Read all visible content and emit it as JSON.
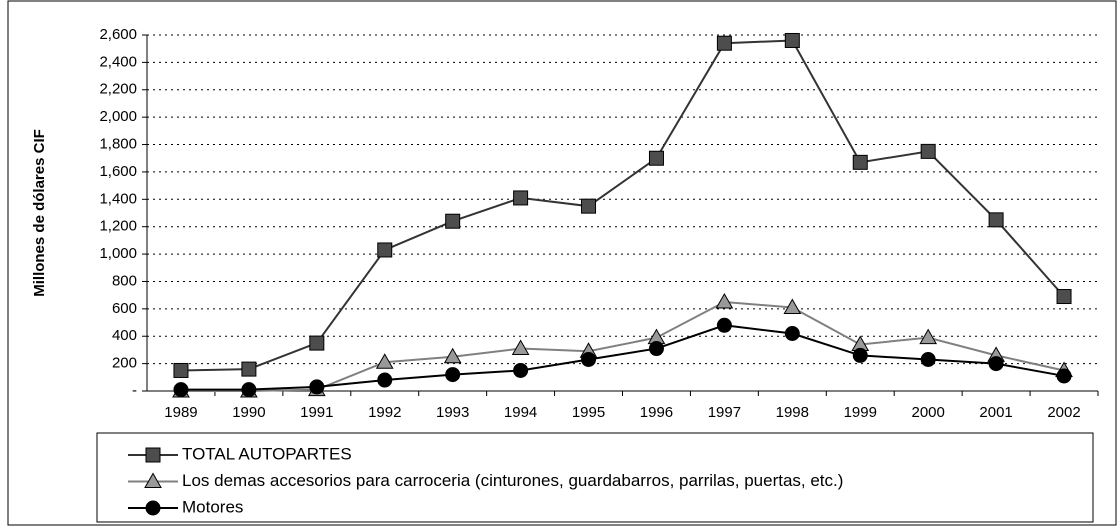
{
  "chart_data": {
    "type": "line",
    "y_label": "Millones de dólares CIF",
    "categories": [
      "1989",
      "1990",
      "1991",
      "1992",
      "1993",
      "1994",
      "1995",
      "1996",
      "1997",
      "1998",
      "1999",
      "2000",
      "2001",
      "2002"
    ],
    "series": [
      {
        "name": "TOTAL AUTOPARTES",
        "color": "#333333",
        "marker": "square",
        "marker_color": "#4d4d4d",
        "values": [
          150,
          160,
          350,
          1030,
          1240,
          1410,
          1350,
          1700,
          2540,
          2560,
          1670,
          1750,
          1250,
          690
        ]
      },
      {
        "name": "Los demas accesorios para carroceria (cinturones, guardabarros, parrilas, puertas, etc.)",
        "color": "#808080",
        "marker": "triangle",
        "marker_color": "#999999",
        "values": [
          0,
          0,
          10,
          210,
          250,
          310,
          290,
          390,
          650,
          610,
          340,
          390,
          260,
          150
        ]
      },
      {
        "name": "Motores",
        "color": "#000000",
        "marker": "circle",
        "marker_color": "#000000",
        "values": [
          10,
          10,
          30,
          80,
          120,
          150,
          230,
          310,
          480,
          420,
          260,
          230,
          200,
          110
        ]
      }
    ],
    "ylim": [
      0,
      2600
    ],
    "yticks": [
      {
        "value": 0,
        "label": "-"
      },
      200,
      400,
      600,
      800,
      {
        "value": 1000,
        "label": "1,000"
      },
      {
        "value": 1200,
        "label": "1,200"
      },
      {
        "value": 1400,
        "label": "1,400"
      },
      {
        "value": 1600,
        "label": "1,600"
      },
      {
        "value": 1800,
        "label": "1,800"
      },
      {
        "value": 2000,
        "label": "2,000"
      },
      {
        "value": 2200,
        "label": "2,200"
      },
      {
        "value": 2400,
        "label": "2,400"
      },
      {
        "value": 2600,
        "label": "2,600"
      }
    ],
    "grid": true,
    "legend": "bottom"
  }
}
